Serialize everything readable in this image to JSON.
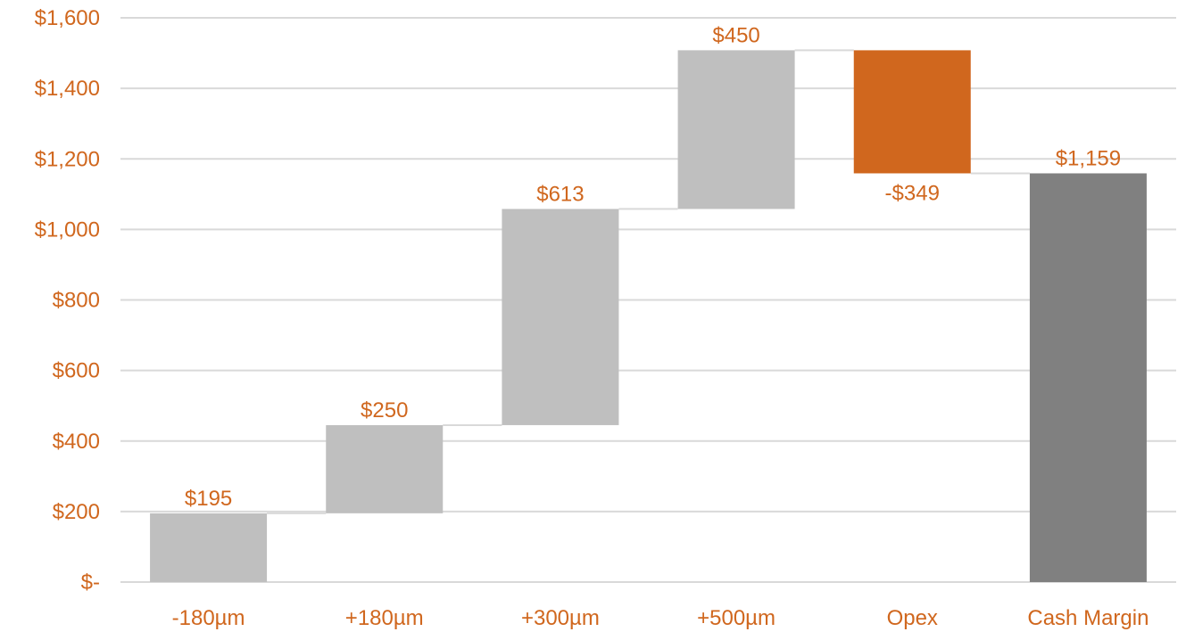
{
  "chart_data": {
    "type": "bar",
    "subtype": "waterfall",
    "title": "",
    "xlabel": "",
    "ylabel": "",
    "categories": [
      "-180µm",
      "+180µm",
      "+300µm",
      "+500µm",
      "Opex",
      "Cash Margin"
    ],
    "values": [
      195,
      250,
      613,
      450,
      -349,
      1159
    ],
    "value_labels": [
      "$195",
      "$250",
      "$613",
      "$450",
      "-$349",
      "$1,159"
    ],
    "bar_kinds": [
      "increase",
      "increase",
      "increase",
      "increase",
      "decrease",
      "total"
    ],
    "ylim": [
      0,
      1600
    ],
    "yticks": [
      0,
      200,
      400,
      600,
      800,
      1000,
      1200,
      1400,
      1600
    ],
    "ytick_labels": [
      "$-",
      "$200",
      "$400",
      "$600",
      "$800",
      "$1,000",
      "$1,200",
      "$1,400",
      "$1,600"
    ],
    "grid": true,
    "connector_lines": true,
    "colors": {
      "increase": "#bfbfbf",
      "decrease": "#d0671e",
      "total": "#808080",
      "label_text": "#d0671e",
      "gridline": "#d9d9d9",
      "connector": "#d9d9d9"
    }
  }
}
